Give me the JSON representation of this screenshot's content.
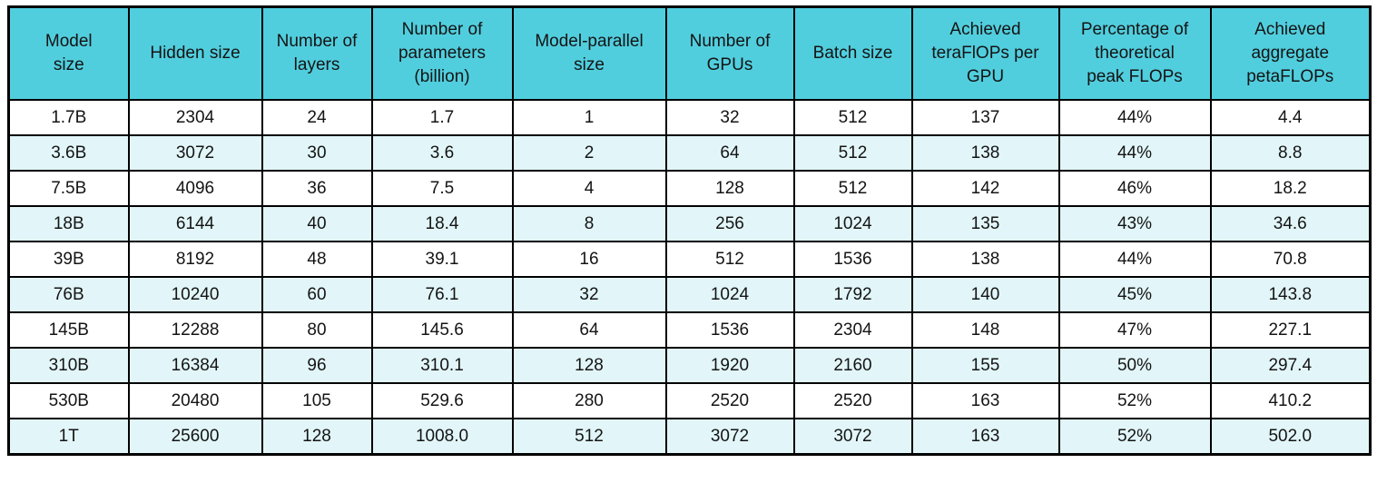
{
  "chart_data": {
    "type": "table",
    "columns": [
      "Model\nsize",
      "Hidden size",
      "Number of\nlayers",
      "Number of\nparameters\n(billion)",
      "Model-parallel\nsize",
      "Number of\nGPUs",
      "Batch size",
      "Achieved\nteraFlOPs per\nGPU",
      "Percentage of\ntheoretical\npeak FLOPs",
      "Achieved\naggregate\npetaFLOPs"
    ],
    "column_slugs": [
      "model-size",
      "hidden-size",
      "number-of-layers",
      "number-of-parameters-billion",
      "model-parallel-size",
      "number-of-gpus",
      "batch-size",
      "achieved-teraflops-per-gpu",
      "percentage-of-theoretical-peak-flops",
      "achieved-aggregate-petaflops"
    ],
    "rows": [
      [
        "1.7B",
        "2304",
        "24",
        "1.7",
        "1",
        "32",
        "512",
        "137",
        "44%",
        "4.4"
      ],
      [
        "3.6B",
        "3072",
        "30",
        "3.6",
        "2",
        "64",
        "512",
        "138",
        "44%",
        "8.8"
      ],
      [
        "7.5B",
        "4096",
        "36",
        "7.5",
        "4",
        "128",
        "512",
        "142",
        "46%",
        "18.2"
      ],
      [
        "18B",
        "6144",
        "40",
        "18.4",
        "8",
        "256",
        "1024",
        "135",
        "43%",
        "34.6"
      ],
      [
        "39B",
        "8192",
        "48",
        "39.1",
        "16",
        "512",
        "1536",
        "138",
        "44%",
        "70.8"
      ],
      [
        "76B",
        "10240",
        "60",
        "76.1",
        "32",
        "1024",
        "1792",
        "140",
        "45%",
        "143.8"
      ],
      [
        "145B",
        "12288",
        "80",
        "145.6",
        "64",
        "1536",
        "2304",
        "148",
        "47%",
        "227.1"
      ],
      [
        "310B",
        "16384",
        "96",
        "310.1",
        "128",
        "1920",
        "2160",
        "155",
        "50%",
        "297.4"
      ],
      [
        "530B",
        "20480",
        "105",
        "529.6",
        "280",
        "2520",
        "2520",
        "163",
        "52%",
        "410.2"
      ],
      [
        "1T",
        "25600",
        "128",
        "1008.0",
        "512",
        "3072",
        "3072",
        "163",
        "52%",
        "502.0"
      ]
    ],
    "colors": {
      "header_bg": "#51CEDE",
      "row_bg": "#FFFFFF",
      "row_alt_bg": "#E2F6F9",
      "border": "#000000",
      "text": "#141414"
    }
  }
}
